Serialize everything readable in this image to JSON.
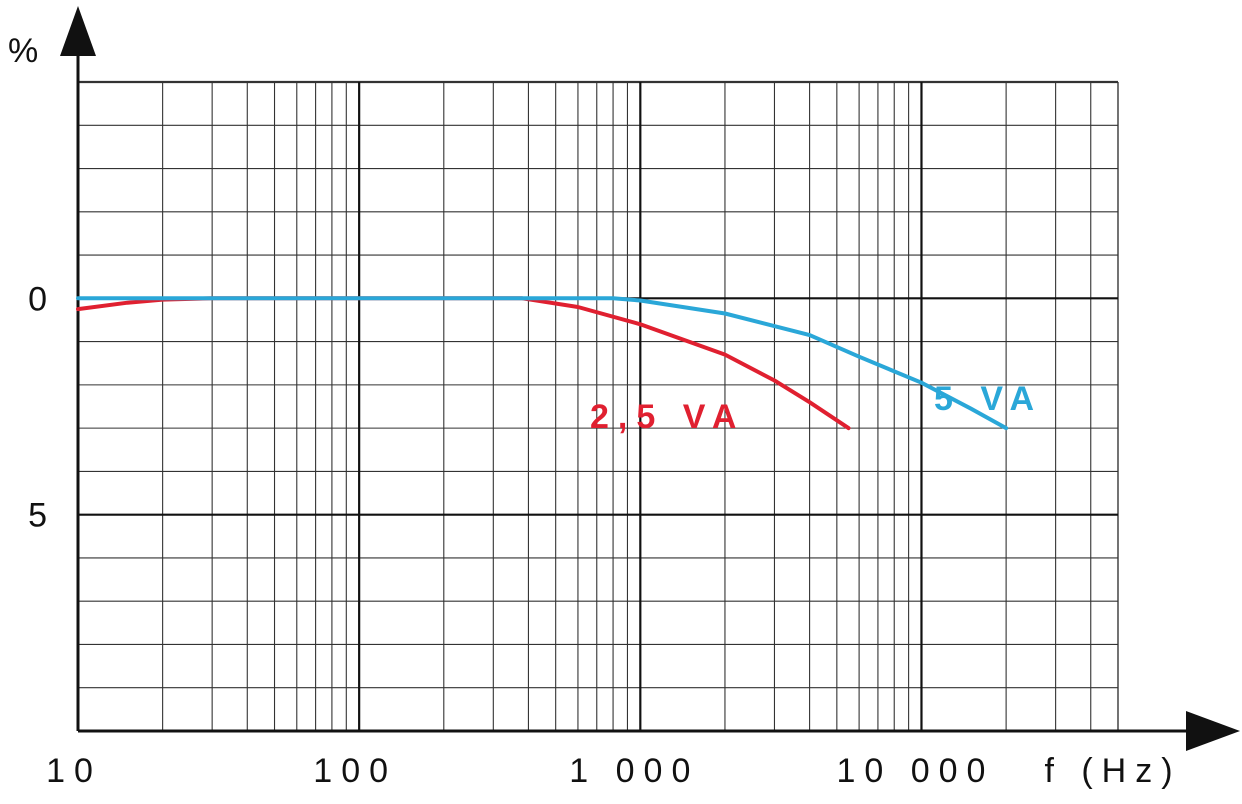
{
  "chart_data": {
    "type": "line",
    "x_scale": "log",
    "xlim": [
      10,
      50000
    ],
    "ylim": [
      -10,
      5
    ],
    "grid": true,
    "ylabel": "%",
    "xlabel": "f (Hz)",
    "x_ticks": [
      {
        "value": 10,
        "label": "10"
      },
      {
        "value": 100,
        "label": "100"
      },
      {
        "value": 1000,
        "label": "1 000"
      },
      {
        "value": 10000,
        "label": "10 000"
      }
    ],
    "y_ticks": [
      {
        "value": 0,
        "label": "0"
      },
      {
        "value": -5,
        "label": "- 5"
      }
    ],
    "series": [
      {
        "name": "2,5 VA",
        "color": "#e02030",
        "points": [
          [
            10,
            -0.25
          ],
          [
            15,
            -0.1
          ],
          [
            20,
            -0.03
          ],
          [
            30,
            0
          ],
          [
            100,
            0
          ],
          [
            380,
            0
          ],
          [
            600,
            -0.2
          ],
          [
            1000,
            -0.6
          ],
          [
            2000,
            -1.3
          ],
          [
            3000,
            -1.9
          ],
          [
            4000,
            -2.4
          ],
          [
            5500,
            -3.0
          ]
        ]
      },
      {
        "name": "5 VA",
        "color": "#2aa7d8",
        "points": [
          [
            10,
            0
          ],
          [
            100,
            0
          ],
          [
            800,
            0
          ],
          [
            1000,
            -0.05
          ],
          [
            2000,
            -0.35
          ],
          [
            4000,
            -0.85
          ],
          [
            6000,
            -1.35
          ],
          [
            10000,
            -1.95
          ],
          [
            15000,
            -2.55
          ],
          [
            20000,
            -3.0
          ]
        ]
      }
    ]
  }
}
